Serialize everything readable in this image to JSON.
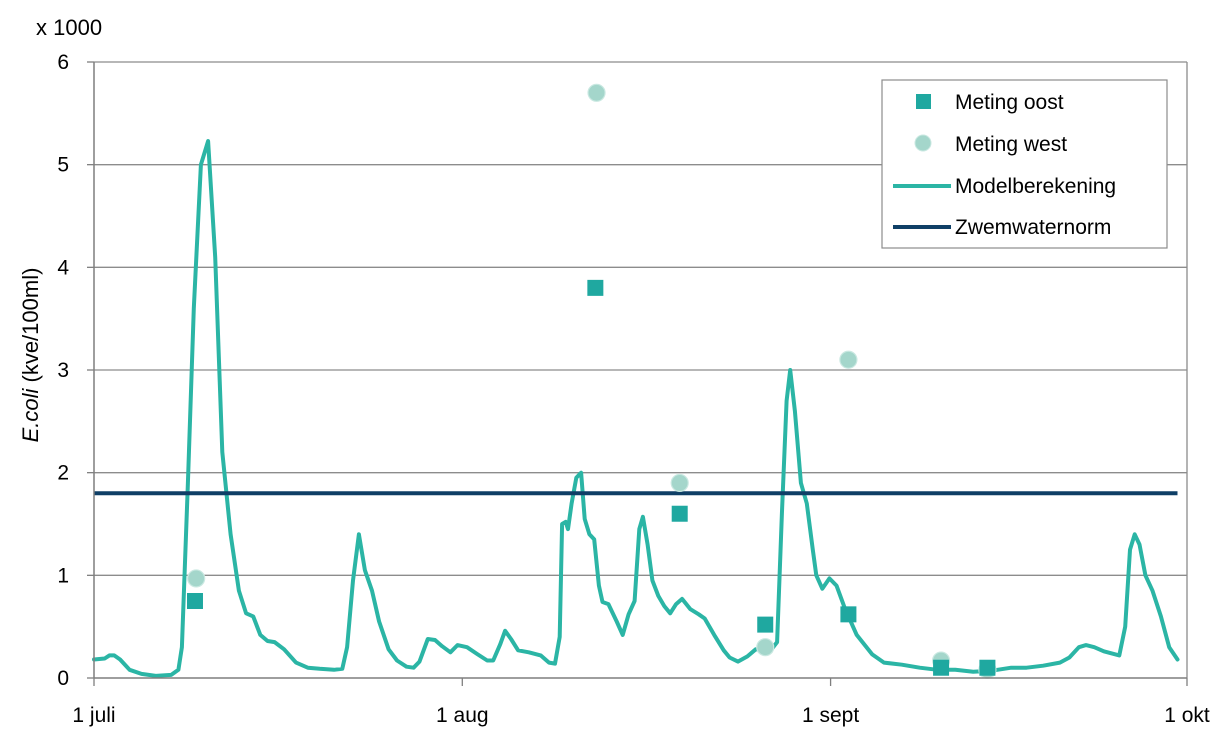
{
  "chart_data": {
    "type": "line",
    "multiplier_label": "x 1000",
    "ylabel_italic": "E.coli",
    "ylabel_rest": " (kve/100ml)",
    "ylim": [
      0,
      6
    ],
    "yticks": [
      0,
      1,
      2,
      3,
      4,
      5,
      6
    ],
    "xaxis": {
      "start": "1 juli",
      "end": "1 okt",
      "day_range": [
        0,
        92
      ]
    },
    "xticks": [
      {
        "day": 0,
        "label": "1 juli"
      },
      {
        "day": 31,
        "label": "1 aug"
      },
      {
        "day": 62,
        "label": "1 sept"
      },
      {
        "day": 92,
        "label": "1 okt"
      }
    ],
    "grid": true,
    "legend_position": "top-right",
    "colors": {
      "meting_oost": "#1fa8a0",
      "meting_west": "#a4d6cb",
      "model": "#2bb5a5",
      "norm": "#0f3f66",
      "grid": "#8c8c8c"
    },
    "series": [
      {
        "name": "Meting oost",
        "kind": "square",
        "points": [
          {
            "day": 8.5,
            "value": 0.75
          },
          {
            "day": 42.2,
            "value": 3.8
          },
          {
            "day": 49.3,
            "value": 1.6
          },
          {
            "day": 56.5,
            "value": 0.52
          },
          {
            "day": 63.5,
            "value": 0.62
          },
          {
            "day": 71.3,
            "value": 0.1
          },
          {
            "day": 75.2,
            "value": 0.1
          }
        ]
      },
      {
        "name": "Meting west",
        "kind": "circle",
        "points": [
          {
            "day": 8.6,
            "value": 0.97
          },
          {
            "day": 42.3,
            "value": 5.7
          },
          {
            "day": 49.3,
            "value": 1.9
          },
          {
            "day": 56.5,
            "value": 0.3
          },
          {
            "day": 63.5,
            "value": 3.1
          },
          {
            "day": 71.3,
            "value": 0.17
          },
          {
            "day": 75.2,
            "value": 0.08
          }
        ]
      },
      {
        "name": "Modelberekening",
        "kind": "line",
        "points": [
          [
            0,
            0.18
          ],
          [
            0.9,
            0.19
          ],
          [
            1.3,
            0.22
          ],
          [
            1.7,
            0.22
          ],
          [
            2.2,
            0.18
          ],
          [
            3,
            0.08
          ],
          [
            4,
            0.04
          ],
          [
            5.2,
            0.02
          ],
          [
            6.5,
            0.03
          ],
          [
            7.1,
            0.08
          ],
          [
            7.4,
            0.3
          ],
          [
            7.9,
            1.9
          ],
          [
            8.4,
            3.6
          ],
          [
            9,
            5.0
          ],
          [
            9.6,
            5.23
          ],
          [
            10.2,
            4.1
          ],
          [
            10.8,
            2.2
          ],
          [
            11.5,
            1.4
          ],
          [
            12.2,
            0.85
          ],
          [
            12.8,
            0.63
          ],
          [
            13.4,
            0.6
          ],
          [
            14,
            0.42
          ],
          [
            14.6,
            0.36
          ],
          [
            15.2,
            0.35
          ],
          [
            16,
            0.28
          ],
          [
            17,
            0.15
          ],
          [
            18,
            0.1
          ],
          [
            19,
            0.09
          ],
          [
            20.2,
            0.08
          ],
          [
            20.9,
            0.09
          ],
          [
            21.3,
            0.3
          ],
          [
            21.8,
            0.95
          ],
          [
            22.3,
            1.4
          ],
          [
            22.8,
            1.05
          ],
          [
            23.4,
            0.85
          ],
          [
            24,
            0.55
          ],
          [
            24.8,
            0.28
          ],
          [
            25.5,
            0.17
          ],
          [
            26.3,
            0.11
          ],
          [
            26.9,
            0.1
          ],
          [
            27.4,
            0.16
          ],
          [
            28.1,
            0.38
          ],
          [
            28.7,
            0.37
          ],
          [
            29.3,
            0.31
          ],
          [
            30,
            0.25
          ],
          [
            30.6,
            0.32
          ],
          [
            31.4,
            0.3
          ],
          [
            32.3,
            0.23
          ],
          [
            33.1,
            0.17
          ],
          [
            33.6,
            0.17
          ],
          [
            34.2,
            0.33
          ],
          [
            34.6,
            0.46
          ],
          [
            35.1,
            0.38
          ],
          [
            35.7,
            0.27
          ],
          [
            36.6,
            0.25
          ],
          [
            37.6,
            0.22
          ],
          [
            38.3,
            0.15
          ],
          [
            38.8,
            0.14
          ],
          [
            39.2,
            0.4
          ],
          [
            39.4,
            1.5
          ],
          [
            39.7,
            1.52
          ],
          [
            39.9,
            1.45
          ],
          [
            40.2,
            1.7
          ],
          [
            40.6,
            1.95
          ],
          [
            41,
            2.0
          ],
          [
            41.3,
            1.55
          ],
          [
            41.7,
            1.4
          ],
          [
            42.1,
            1.35
          ],
          [
            42.5,
            0.9
          ],
          [
            42.8,
            0.74
          ],
          [
            43.3,
            0.72
          ],
          [
            44,
            0.55
          ],
          [
            44.5,
            0.42
          ],
          [
            45,
            0.62
          ],
          [
            45.5,
            0.75
          ],
          [
            45.9,
            1.45
          ],
          [
            46.2,
            1.57
          ],
          [
            46.6,
            1.3
          ],
          [
            47,
            0.95
          ],
          [
            47.5,
            0.8
          ],
          [
            48,
            0.7
          ],
          [
            48.5,
            0.63
          ],
          [
            49,
            0.72
          ],
          [
            49.5,
            0.77
          ],
          [
            50.2,
            0.67
          ],
          [
            50.9,
            0.62
          ],
          [
            51.4,
            0.58
          ],
          [
            52.2,
            0.42
          ],
          [
            53,
            0.27
          ],
          [
            53.5,
            0.2
          ],
          [
            54.2,
            0.16
          ],
          [
            55,
            0.21
          ],
          [
            55.7,
            0.28
          ],
          [
            56.4,
            0.27
          ],
          [
            56.9,
            0.26
          ],
          [
            57.5,
            0.35
          ],
          [
            57.9,
            1.6
          ],
          [
            58.3,
            2.7
          ],
          [
            58.6,
            3.0
          ],
          [
            59,
            2.6
          ],
          [
            59.5,
            1.9
          ],
          [
            60,
            1.7
          ],
          [
            60.5,
            1.25
          ],
          [
            60.8,
            1.0
          ],
          [
            61.3,
            0.87
          ],
          [
            61.9,
            0.97
          ],
          [
            62.5,
            0.9
          ],
          [
            63.2,
            0.68
          ],
          [
            64.2,
            0.42
          ],
          [
            65.5,
            0.23
          ],
          [
            66.5,
            0.15
          ],
          [
            68,
            0.13
          ],
          [
            69.5,
            0.1
          ],
          [
            71,
            0.08
          ],
          [
            72.5,
            0.08
          ],
          [
            74,
            0.06
          ],
          [
            75.5,
            0.07
          ],
          [
            77.2,
            0.1
          ],
          [
            78.5,
            0.1
          ],
          [
            79.9,
            0.12
          ],
          [
            81.3,
            0.15
          ],
          [
            82.1,
            0.2
          ],
          [
            82.9,
            0.3
          ],
          [
            83.5,
            0.32
          ],
          [
            84.2,
            0.3
          ],
          [
            85,
            0.26
          ],
          [
            86.3,
            0.22
          ],
          [
            86.8,
            0.5
          ],
          [
            87.2,
            1.25
          ],
          [
            87.6,
            1.4
          ],
          [
            88,
            1.3
          ],
          [
            88.5,
            1.0
          ],
          [
            89.1,
            0.85
          ],
          [
            89.8,
            0.6
          ],
          [
            90.5,
            0.3
          ],
          [
            91.2,
            0.18
          ]
        ]
      },
      {
        "name": "Zwemwaternorm",
        "kind": "hline",
        "value": 1.8,
        "x_range": [
          0,
          91.2
        ]
      }
    ]
  }
}
